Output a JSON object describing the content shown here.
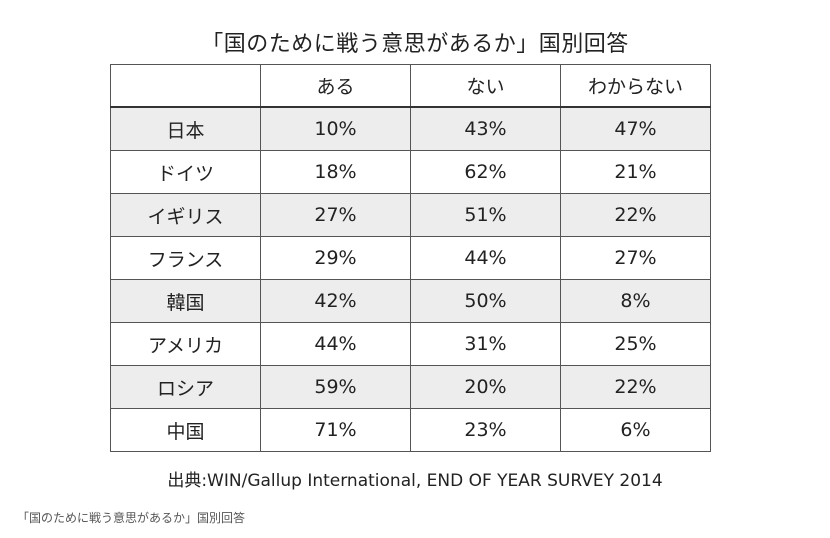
{
  "chart_data": {
    "type": "table",
    "title": "「国のために戦う意思があるか」国別回答",
    "columns": [
      "",
      "ある",
      "ない",
      "わからない"
    ],
    "rows": [
      {
        "country": "日本",
        "values": [
          "10%",
          "43%",
          "47%"
        ]
      },
      {
        "country": "ドイツ",
        "values": [
          "18%",
          "62%",
          "21%"
        ]
      },
      {
        "country": "イギリス",
        "values": [
          "27%",
          "51%",
          "22%"
        ]
      },
      {
        "country": "フランス",
        "values": [
          "29%",
          "44%",
          "27%"
        ]
      },
      {
        "country": "韓国",
        "values": [
          "42%",
          "50%",
          "8%"
        ]
      },
      {
        "country": "アメリカ",
        "values": [
          "44%",
          "31%",
          "25%"
        ]
      },
      {
        "country": "ロシア",
        "values": [
          "59%",
          "20%",
          "22%"
        ]
      },
      {
        "country": "中国",
        "values": [
          "71%",
          "23%",
          "6%"
        ]
      }
    ],
    "source": "出典:WIN/Gallup International, END OF YEAR SURVEY 2014"
  },
  "caption": "「国のために戦う意思があるか」国別回答"
}
